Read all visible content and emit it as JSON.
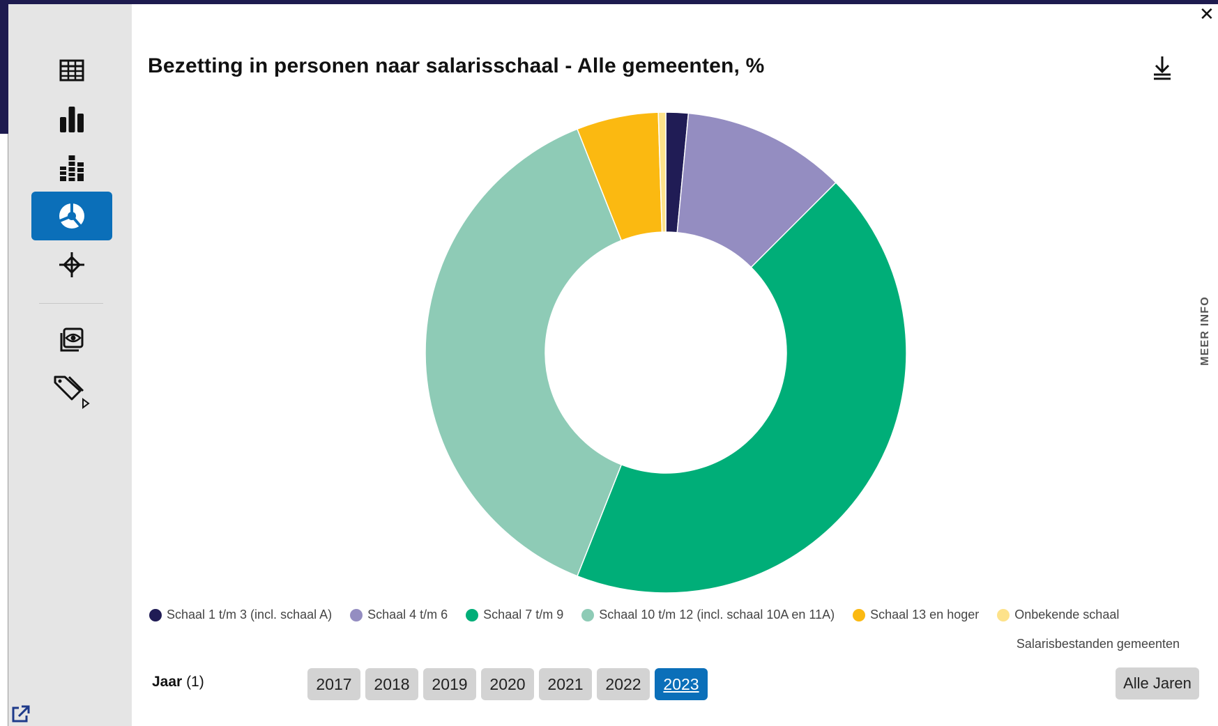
{
  "title": "Bezetting in personen naar salarisschaal - Alle gemeenten, %",
  "close_label": "✕",
  "meer_info_label": "MEER INFO",
  "sidebar": {
    "items": [
      {
        "name": "table-view-button",
        "icon": "table-icon",
        "active": false
      },
      {
        "name": "bar-chart-view-button",
        "icon": "bar-chart-icon",
        "active": false
      },
      {
        "name": "stacked-chart-view-button",
        "icon": "stacked-bar-icon",
        "active": false
      },
      {
        "name": "pie-chart-view-button",
        "icon": "pie-chart-icon",
        "active": true
      },
      {
        "name": "scatter-view-button",
        "icon": "crosshair-icon",
        "active": false
      },
      {
        "name": "preview-button",
        "icon": "eye-icon",
        "active": false
      },
      {
        "name": "tags-button",
        "icon": "tag-icon",
        "active": false
      }
    ]
  },
  "chart_data": {
    "type": "pie",
    "variant": "donut",
    "title": "Bezetting in personen naar salarisschaal - Alle gemeenten, %",
    "unit": "%",
    "categories": [
      "Schaal 1 t/m 3 (incl. schaal A)",
      "Schaal 4 t/m 6",
      "Schaal 7 t/m 9",
      "Schaal 10 t/m 12 (incl. schaal 10A en 11A)",
      "Schaal 13 en hoger",
      "Onbekende schaal"
    ],
    "values": [
      1.5,
      11.0,
      43.5,
      38.0,
      5.5,
      0.5
    ],
    "colors": [
      "#201c55",
      "#948dc1",
      "#00ae78",
      "#8ecbb6",
      "#fbb911",
      "#fde28a"
    ],
    "legend_position": "bottom",
    "source": "Salarisbestanden gemeenten"
  },
  "filter": {
    "label": "Jaar",
    "count": "(1)",
    "years": [
      "2017",
      "2018",
      "2019",
      "2020",
      "2021",
      "2022",
      "2023"
    ],
    "selected": "2023",
    "all_label": "Alle Jaren"
  }
}
